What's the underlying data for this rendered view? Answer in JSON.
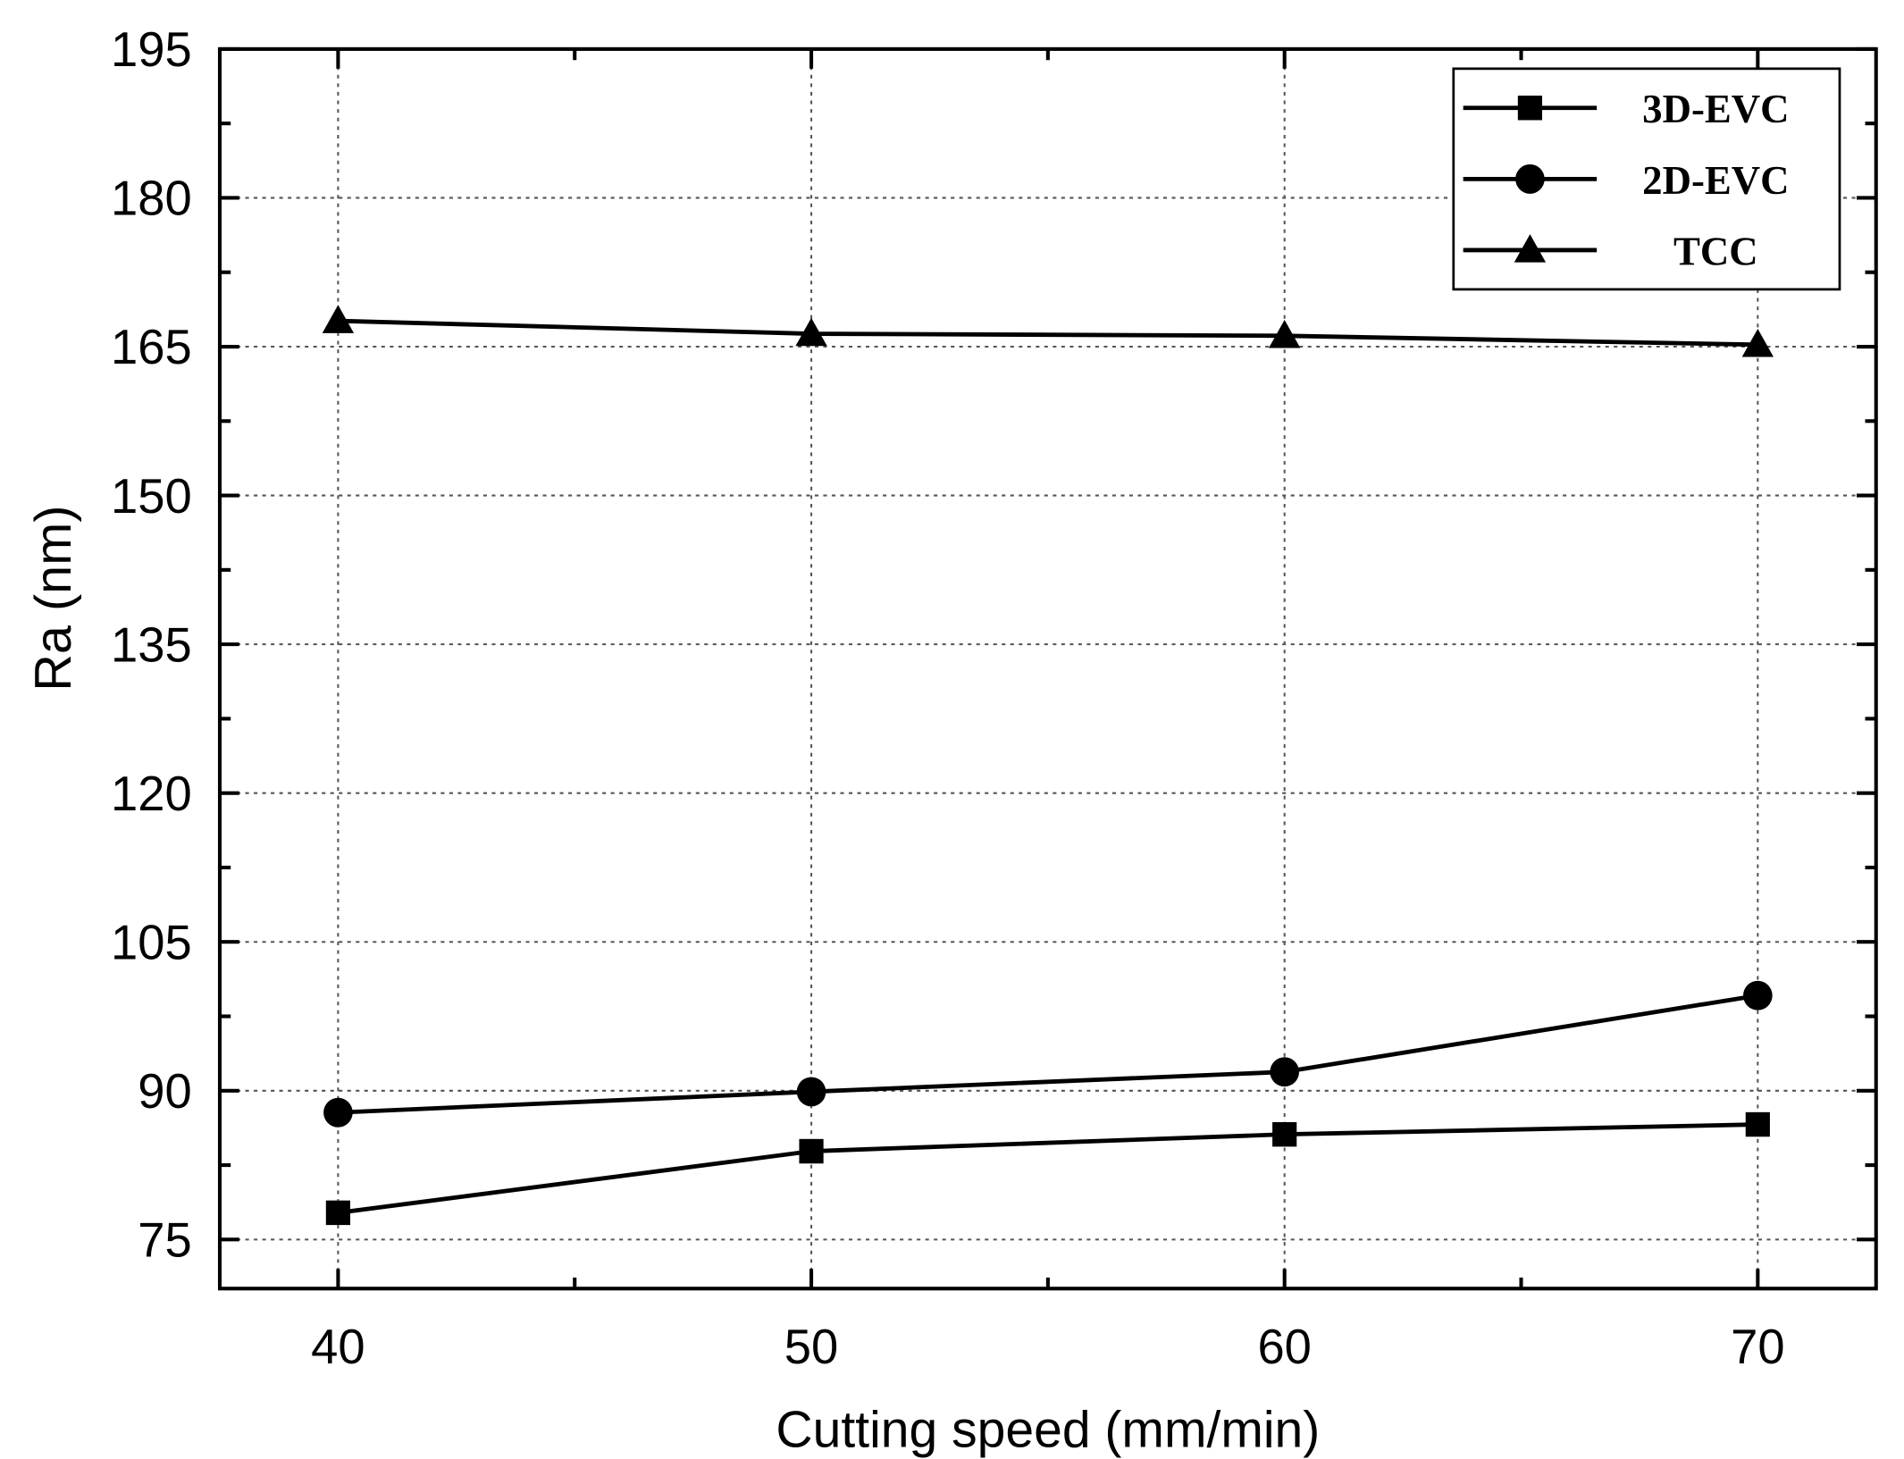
{
  "chart_data": {
    "type": "line",
    "title": "",
    "xlabel": "Cutting speed (mm/min)",
    "ylabel": "Ra (nm)",
    "x": [
      40,
      50,
      60,
      70
    ],
    "xlim": [
      37.5,
      72.5
    ],
    "ylim": [
      75,
      195
    ],
    "xticks": [
      40,
      50,
      60,
      70
    ],
    "yticks": [
      75,
      90,
      105,
      120,
      135,
      150,
      165,
      180,
      195
    ],
    "grid": true,
    "legend_position": "top-right",
    "series": [
      {
        "name": "3D-EVC",
        "marker": "square",
        "values": [
          77.7,
          83.9,
          85.6,
          86.6
        ]
      },
      {
        "name": "2D-EVC",
        "marker": "circle",
        "values": [
          87.8,
          89.9,
          91.9,
          99.6
        ]
      },
      {
        "name": "TCC",
        "marker": "triangle",
        "values": [
          167.6,
          166.3,
          166.1,
          165.2
        ]
      }
    ],
    "color": "#000000"
  }
}
